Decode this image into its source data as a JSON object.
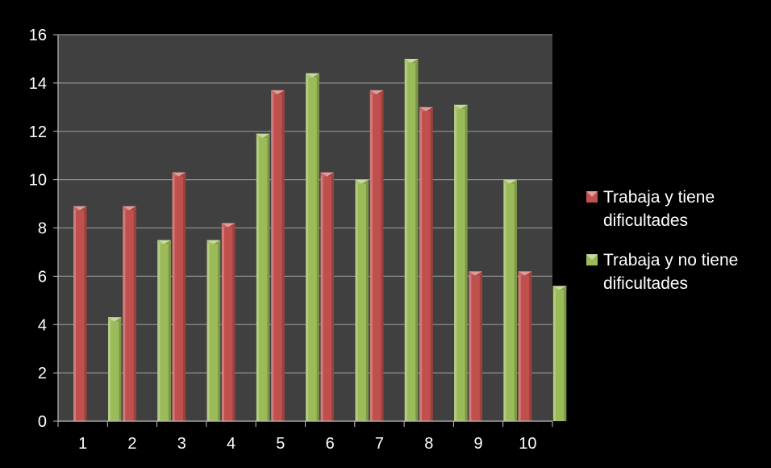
{
  "chart_data": {
    "type": "bar",
    "categories": [
      "1",
      "2",
      "3",
      "4",
      "5",
      "6",
      "7",
      "8",
      "9",
      "10"
    ],
    "series": [
      {
        "name": "Trabaja y tiene dificultades",
        "name_lines": [
          "Trabaja y tiene",
          "dificultades"
        ],
        "color": "#c0504d",
        "values": [
          8.9,
          8.9,
          10.3,
          8.2,
          13.7,
          10.3,
          13.7,
          13.0,
          6.2,
          6.2
        ]
      },
      {
        "name": "Trabaja y no tiene dificultades",
        "name_lines": [
          "Trabaja y no tiene",
          "dificultades"
        ],
        "color": "#9bbb59",
        "values": [
          4.3,
          7.5,
          7.5,
          11.9,
          14.4,
          10.0,
          15.0,
          13.1,
          10.0,
          5.6
        ]
      }
    ],
    "ylim": [
      0,
      16
    ],
    "yticks": [
      0,
      2,
      4,
      6,
      8,
      10,
      12,
      14,
      16
    ],
    "grid": true,
    "legend_position": "right",
    "plot_background": "#404040",
    "page_background": "#000000"
  }
}
